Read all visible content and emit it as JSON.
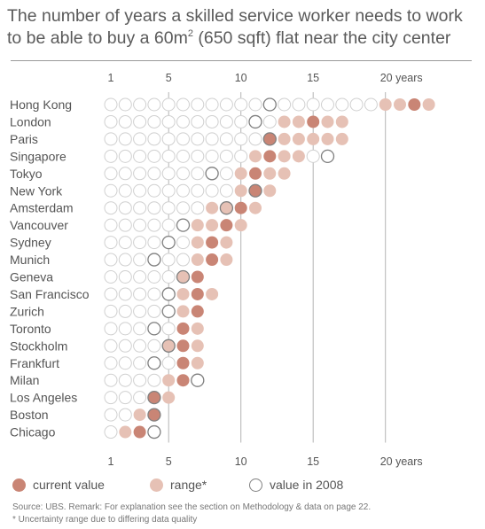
{
  "title": {
    "line1": "The number of years a skilled service worker needs to work",
    "line2_pre": "to be able to buy a 60m",
    "line2_sup": "2",
    "line2_post": " (650 sqft) flat near the city center"
  },
  "legend": {
    "current_label": "current value",
    "range_label": "range*",
    "value2008_label": "value in 2008"
  },
  "notes": {
    "source": "Source: UBS. Remark: For explanation see the section on Methodology & data on page 22.",
    "footnote": "* Uncertainty range due to differing data quality"
  },
  "colors": {
    "current": "#c98575",
    "range": "#e6c1b5",
    "empty_fill": "#ffffff",
    "empty_stroke": "#d0d0d0",
    "value2008_stroke": "#808080",
    "gridline": "#b4b4b4",
    "text": "#555555"
  },
  "chart_data": {
    "type": "dot-matrix",
    "x_unit": "years",
    "xlim": [
      1,
      23
    ],
    "x_ticks": [
      {
        "value": 1,
        "label": "1"
      },
      {
        "value": 5,
        "label": "5"
      },
      {
        "value": 10,
        "label": "10"
      },
      {
        "value": 15,
        "label": "15"
      },
      {
        "value": 20,
        "label": "20 years"
      }
    ],
    "cities": [
      {
        "name": "Hong Kong",
        "current": 22,
        "range": [
          20,
          23
        ],
        "value_2008": 12
      },
      {
        "name": "London",
        "current": 15,
        "range": [
          13,
          17
        ],
        "value_2008": 11
      },
      {
        "name": "Paris",
        "current": 12,
        "range": [
          12,
          17
        ],
        "value_2008": 12
      },
      {
        "name": "Singapore",
        "current": 12,
        "range": [
          11,
          14
        ],
        "value_2008": 16
      },
      {
        "name": "Tokyo",
        "current": 11,
        "range": [
          10,
          13
        ],
        "value_2008": 8
      },
      {
        "name": "New York",
        "current": 11,
        "range": [
          10,
          12
        ],
        "value_2008": 11
      },
      {
        "name": "Amsterdam",
        "current": 10,
        "range": [
          8,
          11
        ],
        "value_2008": 9
      },
      {
        "name": "Vancouver",
        "current": 9,
        "range": [
          7,
          10
        ],
        "value_2008": 6
      },
      {
        "name": "Sydney",
        "current": 8,
        "range": [
          7,
          9
        ],
        "value_2008": 5
      },
      {
        "name": "Munich",
        "current": 8,
        "range": [
          7,
          9
        ],
        "value_2008": 4
      },
      {
        "name": "Geneva",
        "current": 7,
        "range": [
          6,
          7
        ],
        "value_2008": 6
      },
      {
        "name": "San Francisco",
        "current": 7,
        "range": [
          6,
          8
        ],
        "value_2008": 5
      },
      {
        "name": "Zurich",
        "current": 7,
        "range": [
          6,
          7
        ],
        "value_2008": 5
      },
      {
        "name": "Toronto",
        "current": 6,
        "range": [
          6,
          7
        ],
        "value_2008": 4
      },
      {
        "name": "Stockholm",
        "current": 6,
        "range": [
          5,
          7
        ],
        "value_2008": 5
      },
      {
        "name": "Frankfurt",
        "current": 6,
        "range": [
          6,
          7
        ],
        "value_2008": 4
      },
      {
        "name": "Milan",
        "current": 6,
        "range": [
          5,
          6
        ],
        "value_2008": 7
      },
      {
        "name": "Los Angeles",
        "current": 4,
        "range": [
          4,
          5
        ],
        "value_2008": 4
      },
      {
        "name": "Boston",
        "current": 4,
        "range": [
          3,
          4
        ],
        "value_2008": 4
      },
      {
        "name": "Chicago",
        "current": 3,
        "range": [
          2,
          3
        ],
        "value_2008": 4
      }
    ]
  }
}
